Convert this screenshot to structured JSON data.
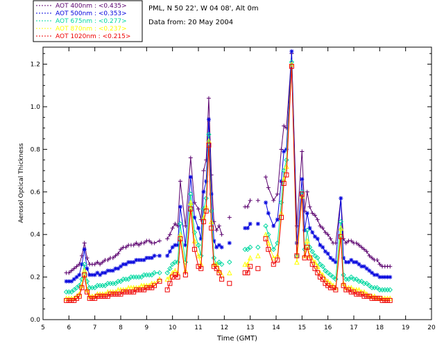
{
  "header": {
    "station": "PML, N 50 22', W 04 08', Alt 0m",
    "date_line": "Data from: 20 May 2004"
  },
  "chart_data": {
    "type": "line",
    "title": "",
    "xlabel": "Time (GMT)",
    "ylabel": "Aerosol Optical Thickness",
    "xlim": [
      5,
      20
    ],
    "ylim": [
      0,
      1.28
    ],
    "x_ticks": [
      "5",
      "6",
      "7",
      "8",
      "9",
      "10",
      "11",
      "12",
      "13",
      "14",
      "15",
      "16",
      "17",
      "18",
      "19",
      "20"
    ],
    "y_ticks": [
      "0.0",
      "0.2",
      "0.4",
      "0.6",
      "0.8",
      "1.0",
      "1.2"
    ],
    "legend_position": "top-left (outside plot)",
    "x": [
      5.9,
      6.0,
      6.1,
      6.2,
      6.3,
      6.4,
      6.5,
      6.6,
      6.7,
      6.8,
      6.9,
      7.0,
      7.1,
      7.2,
      7.3,
      7.4,
      7.5,
      7.6,
      7.7,
      7.8,
      7.9,
      8.0,
      8.1,
      8.2,
      8.3,
      8.4,
      8.5,
      8.6,
      8.7,
      8.8,
      8.9,
      9.0,
      9.1,
      9.2,
      9.3,
      9.5,
      9.8,
      9.9,
      10.0,
      10.1,
      10.2,
      10.3,
      10.5,
      10.7,
      10.85,
      11.0,
      11.1,
      11.2,
      11.3,
      11.4,
      11.5,
      11.6,
      11.7,
      11.8,
      11.9,
      12.2,
      12.8,
      12.9,
      13.0,
      13.3,
      13.6,
      13.7,
      13.9,
      14.05,
      14.2,
      14.3,
      14.4,
      14.6,
      14.8,
      15.0,
      15.1,
      15.2,
      15.3,
      15.4,
      15.5,
      15.6,
      15.7,
      15.8,
      15.9,
      16.0,
      16.1,
      16.2,
      16.3,
      16.5,
      16.6,
      16.7,
      16.8,
      16.9,
      17.0,
      17.1,
      17.2,
      17.3,
      17.4,
      17.5,
      17.6,
      17.7,
      17.8,
      17.9,
      18.0,
      18.1,
      18.2,
      18.3,
      18.4
    ],
    "series": [
      {
        "name": "400nm",
        "legend_label": "AOT  400nm : <0.435>",
        "color": "#5a006e",
        "marker": "plus",
        "values": [
          0.22,
          0.22,
          0.23,
          0.24,
          0.25,
          0.26,
          0.3,
          0.36,
          0.29,
          0.26,
          0.26,
          0.26,
          0.27,
          0.26,
          0.27,
          0.28,
          0.28,
          0.29,
          0.29,
          0.3,
          0.31,
          0.33,
          0.34,
          0.34,
          0.35,
          0.35,
          0.35,
          0.36,
          0.35,
          0.36,
          0.36,
          0.37,
          0.37,
          0.36,
          0.36,
          0.37,
          0.38,
          0.4,
          0.43,
          0.45,
          0.44,
          0.65,
          0.44,
          0.76,
          0.55,
          0.52,
          0.47,
          0.7,
          0.75,
          1.04,
          0.68,
          0.46,
          0.42,
          0.44,
          0.4,
          0.48,
          0.53,
          0.53,
          0.56,
          0.56,
          0.67,
          0.62,
          0.56,
          0.59,
          0.8,
          0.91,
          0.9,
          1.25,
          0.44,
          0.79,
          0.51,
          0.6,
          0.53,
          0.5,
          0.49,
          0.47,
          0.44,
          0.43,
          0.41,
          0.4,
          0.38,
          0.36,
          0.36,
          0.57,
          0.38,
          0.36,
          0.37,
          0.37,
          0.36,
          0.36,
          0.35,
          0.34,
          0.33,
          0.32,
          0.3,
          0.29,
          0.28,
          0.28,
          0.26,
          0.25,
          0.25,
          0.25,
          0.25
        ]
      },
      {
        "name": "500nm",
        "legend_label": "AOT  500nm : <0.353>",
        "color": "#0000dd",
        "marker": "asterisk",
        "values": [
          0.18,
          0.18,
          0.18,
          0.19,
          0.2,
          0.21,
          0.26,
          0.33,
          0.24,
          0.21,
          0.21,
          0.21,
          0.22,
          0.21,
          0.22,
          0.22,
          0.23,
          0.23,
          0.23,
          0.24,
          0.24,
          0.25,
          0.26,
          0.26,
          0.27,
          0.27,
          0.27,
          0.28,
          0.28,
          0.28,
          0.28,
          0.29,
          0.29,
          0.29,
          0.3,
          0.3,
          0.3,
          0.32,
          0.34,
          0.35,
          0.35,
          0.53,
          0.35,
          0.67,
          0.48,
          0.43,
          0.38,
          0.6,
          0.65,
          0.94,
          0.59,
          0.37,
          0.34,
          0.35,
          0.34,
          0.36,
          0.43,
          0.43,
          0.45,
          0.45,
          0.55,
          0.5,
          0.44,
          0.47,
          0.65,
          0.79,
          0.8,
          1.26,
          0.36,
          0.66,
          0.42,
          0.5,
          0.43,
          0.41,
          0.39,
          0.38,
          0.35,
          0.34,
          0.32,
          0.31,
          0.29,
          0.28,
          0.27,
          0.57,
          0.29,
          0.27,
          0.27,
          0.28,
          0.27,
          0.27,
          0.26,
          0.25,
          0.25,
          0.24,
          0.23,
          0.22,
          0.21,
          0.21,
          0.2,
          0.2,
          0.2,
          0.2,
          0.2
        ]
      },
      {
        "name": "675nm",
        "legend_label": "AOT  675nm : <0.277>",
        "color": "#00d8a0",
        "marker": "diamond",
        "values": [
          0.13,
          0.13,
          0.13,
          0.14,
          0.15,
          0.16,
          0.19,
          0.26,
          0.18,
          0.15,
          0.15,
          0.15,
          0.16,
          0.16,
          0.16,
          0.16,
          0.17,
          0.17,
          0.17,
          0.17,
          0.18,
          0.18,
          0.19,
          0.19,
          0.19,
          0.2,
          0.2,
          0.2,
          0.2,
          0.2,
          0.21,
          0.21,
          0.21,
          0.21,
          0.22,
          0.22,
          0.22,
          0.24,
          0.26,
          0.27,
          0.27,
          0.45,
          0.27,
          0.59,
          0.41,
          0.35,
          0.3,
          0.52,
          0.57,
          0.87,
          0.51,
          0.29,
          0.26,
          0.27,
          0.26,
          0.27,
          0.33,
          0.33,
          0.34,
          0.34,
          0.44,
          0.4,
          0.33,
          0.36,
          0.55,
          0.7,
          0.75,
          1.21,
          0.3,
          0.6,
          0.33,
          0.42,
          0.34,
          0.32,
          0.3,
          0.29,
          0.26,
          0.25,
          0.23,
          0.22,
          0.21,
          0.2,
          0.19,
          0.46,
          0.21,
          0.19,
          0.19,
          0.2,
          0.19,
          0.19,
          0.18,
          0.18,
          0.17,
          0.17,
          0.16,
          0.15,
          0.15,
          0.15,
          0.14,
          0.14,
          0.14,
          0.14,
          0.14
        ]
      },
      {
        "name": "870nm",
        "legend_label": "AOT  870nm : <0.237>",
        "color": "#ffff00",
        "marker": "triangle",
        "values": [
          0.1,
          0.1,
          0.1,
          0.1,
          0.11,
          0.12,
          0.16,
          0.23,
          0.14,
          0.11,
          0.11,
          0.11,
          0.12,
          0.12,
          0.12,
          0.12,
          0.13,
          0.13,
          0.13,
          0.13,
          0.14,
          0.14,
          0.14,
          0.14,
          0.15,
          0.15,
          0.15,
          0.15,
          0.15,
          0.16,
          0.16,
          0.16,
          0.16,
          0.17,
          0.17,
          0.19,
          0.19,
          0.2,
          0.22,
          0.23,
          0.22,
          0.4,
          0.23,
          0.55,
          0.37,
          0.3,
          0.26,
          0.48,
          0.53,
          0.84,
          0.46,
          0.26,
          0.26,
          0.23,
          0.21,
          0.22,
          0.26,
          0.26,
          0.29,
          0.3,
          0.4,
          0.36,
          0.29,
          0.3,
          0.5,
          0.66,
          0.72,
          1.2,
          0.27,
          0.58,
          0.3,
          0.37,
          0.3,
          0.28,
          0.27,
          0.25,
          0.22,
          0.21,
          0.19,
          0.18,
          0.17,
          0.16,
          0.15,
          0.43,
          0.17,
          0.15,
          0.15,
          0.15,
          0.14,
          0.14,
          0.14,
          0.13,
          0.13,
          0.12,
          0.11,
          0.11,
          0.11,
          0.1,
          0.1,
          0.1,
          0.1,
          0.1,
          0.1
        ]
      },
      {
        "name": "1020nm",
        "legend_label": "AOT 1020nm : <0.215>",
        "color": "#ee0000",
        "marker": "square",
        "values": [
          0.09,
          0.09,
          0.09,
          0.09,
          0.1,
          0.11,
          0.15,
          0.21,
          0.13,
          0.1,
          0.1,
          0.1,
          0.11,
          0.11,
          0.11,
          0.11,
          0.11,
          0.12,
          0.12,
          0.12,
          0.12,
          0.12,
          0.13,
          0.13,
          0.13,
          0.13,
          0.13,
          0.14,
          0.14,
          0.14,
          0.14,
          0.15,
          0.15,
          0.15,
          0.16,
          0.18,
          0.14,
          0.17,
          0.2,
          0.21,
          0.2,
          0.38,
          0.21,
          0.52,
          0.33,
          0.25,
          0.24,
          0.46,
          0.51,
          0.82,
          0.43,
          0.25,
          0.24,
          0.22,
          0.19,
          0.17,
          0.22,
          0.22,
          0.25,
          0.24,
          0.38,
          0.33,
          0.26,
          0.28,
          0.48,
          0.64,
          0.68,
          1.19,
          0.3,
          0.59,
          0.29,
          0.34,
          0.29,
          0.26,
          0.24,
          0.22,
          0.2,
          0.19,
          0.17,
          0.16,
          0.15,
          0.15,
          0.14,
          0.39,
          0.16,
          0.14,
          0.14,
          0.13,
          0.13,
          0.12,
          0.12,
          0.12,
          0.11,
          0.11,
          0.11,
          0.1,
          0.1,
          0.1,
          0.1,
          0.09,
          0.09,
          0.09,
          0.09
        ]
      }
    ]
  }
}
